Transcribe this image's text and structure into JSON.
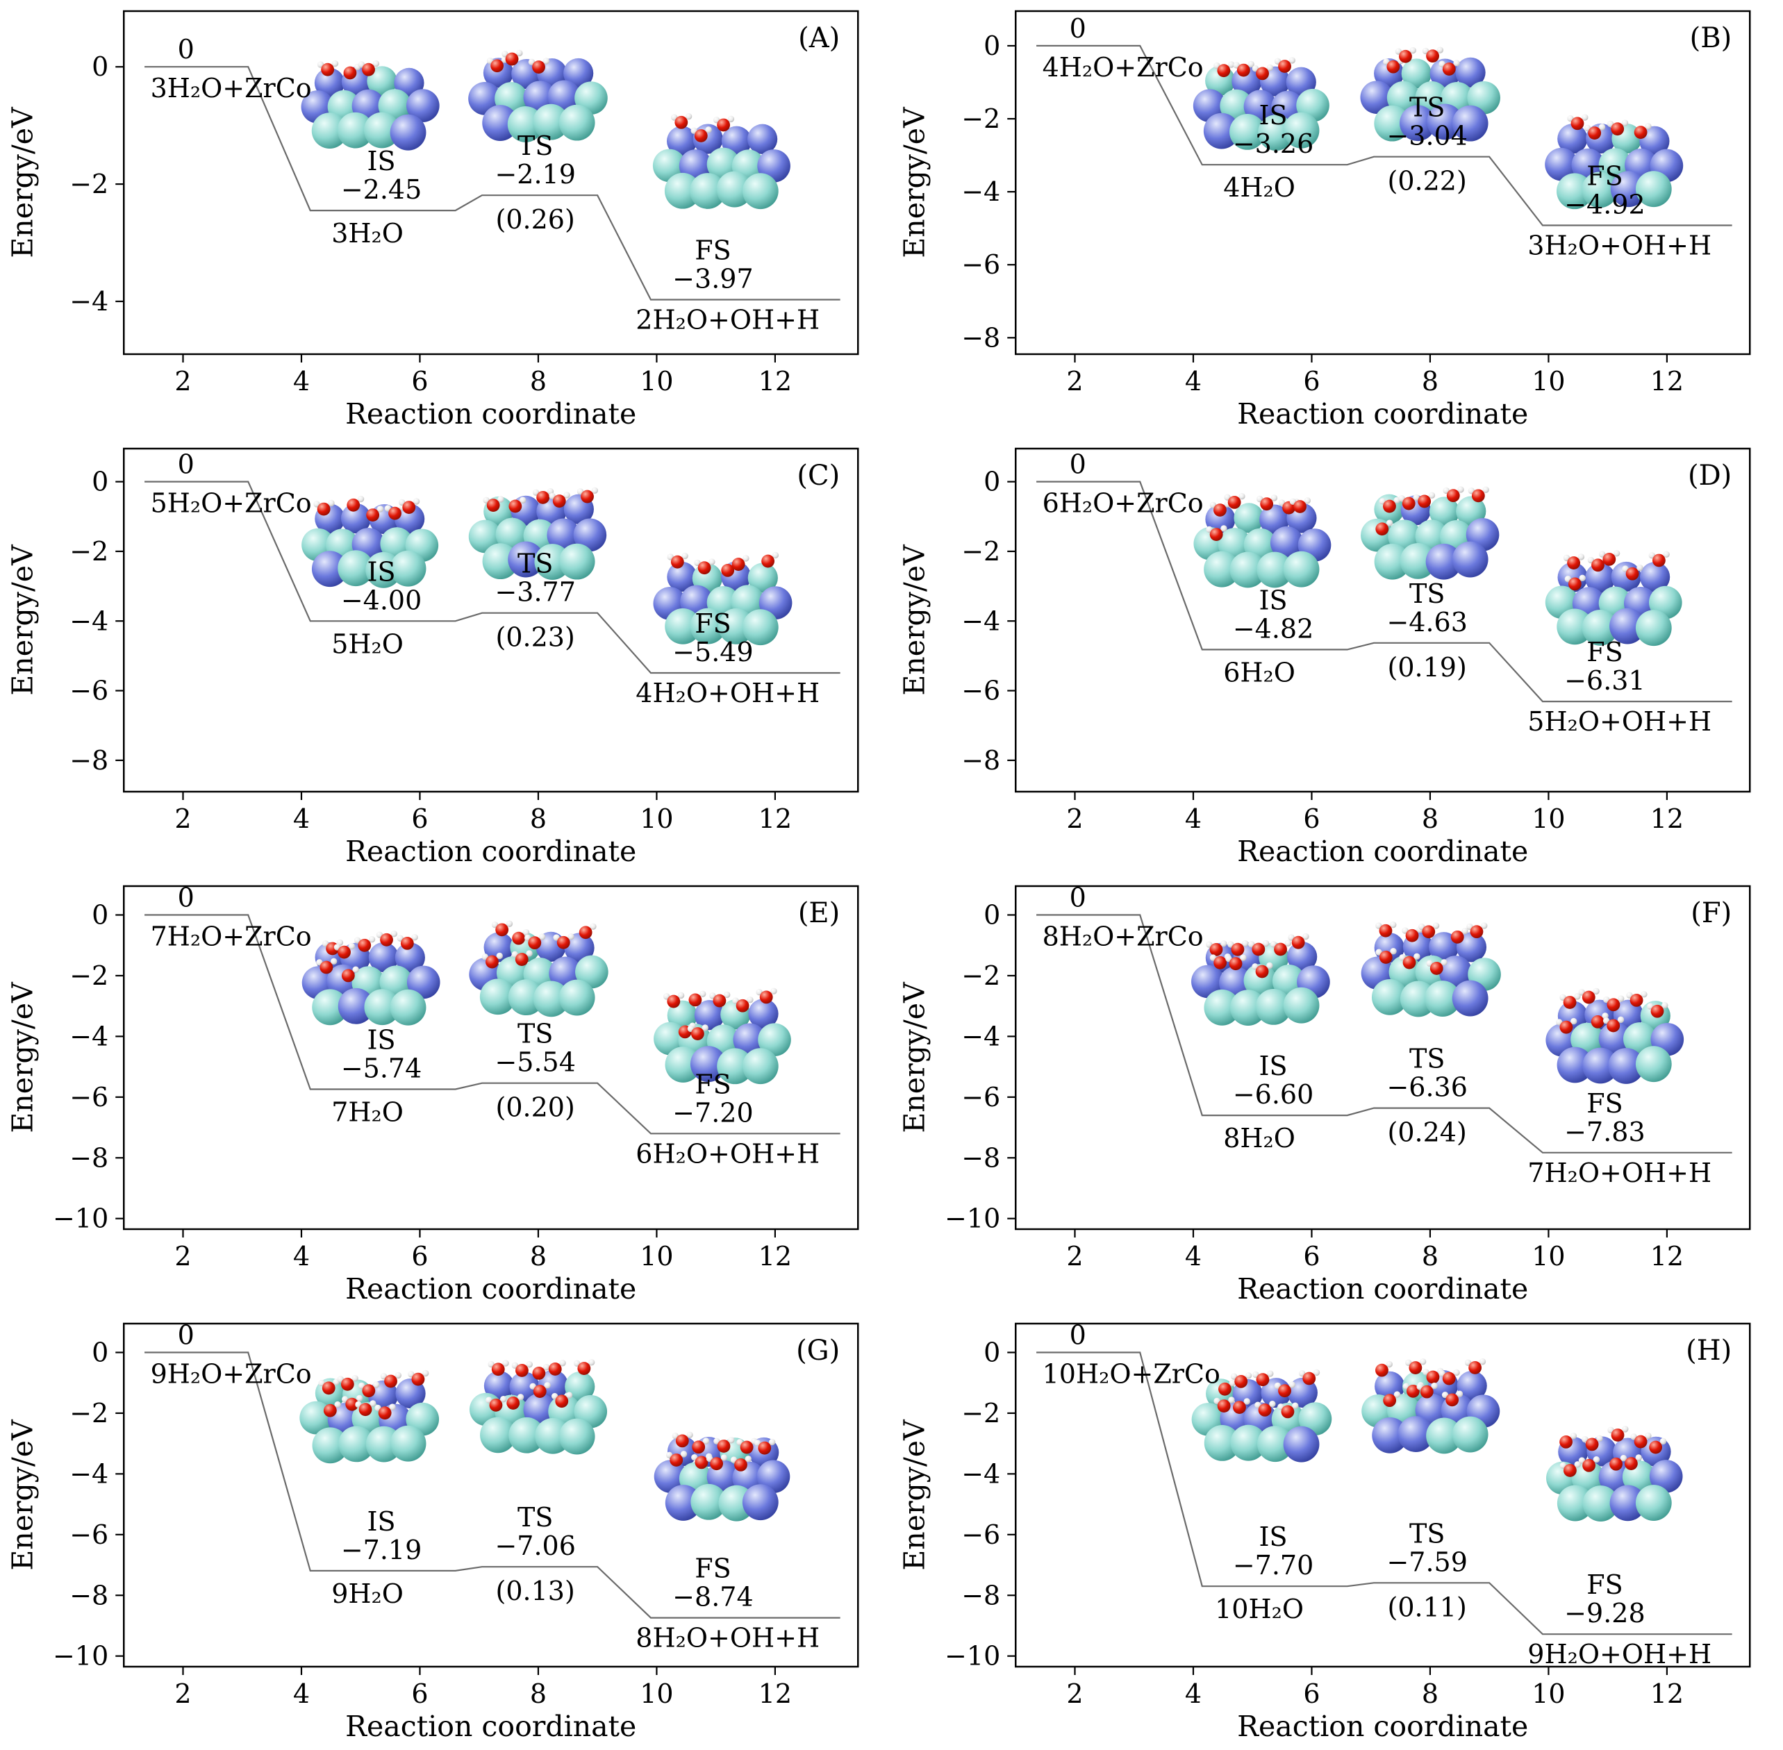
{
  "figure": {
    "xlabel": "Reaction coordinate",
    "ylabel": "Energy/eV",
    "x_ticks": [
      2,
      4,
      6,
      8,
      10,
      12
    ],
    "profile_x": [
      1.35,
      3.1,
      4.15,
      6.6,
      7.05,
      9.0,
      9.9,
      13.1
    ],
    "line_color": "#6a6a6a",
    "atom_colors": {
      "surface_cyan": "#8fd8d0",
      "surface_blue": "#6b79dd",
      "oxygen": "#e01505",
      "hydrogen": "#f5f5f5"
    }
  },
  "chart_data": [
    {
      "type": "line",
      "panel": "(A)",
      "xlabel": "Reaction coordinate",
      "ylabel": "Energy/eV",
      "reactant": "3H₂O+ZrCo",
      "zero_label": "0",
      "is_label": "IS",
      "is_value": -2.45,
      "adsorbed": "3H₂O",
      "ts_label": "TS",
      "ts_value": -2.19,
      "barrier": "(0.26)",
      "fs_label": "FS",
      "fs_value": -3.97,
      "product": "2H₂O+OH+H",
      "n_water": 3,
      "y_ticks": [
        0,
        -2,
        -4
      ],
      "ylim": [
        -4.9,
        0.95
      ],
      "xlim": [
        1,
        13.4
      ]
    },
    {
      "type": "line",
      "panel": "(B)",
      "xlabel": "Reaction coordinate",
      "ylabel": "Energy/eV",
      "reactant": "4H₂O+ZrCo",
      "zero_label": "0",
      "is_label": "IS",
      "is_value": -3.26,
      "adsorbed": "4H₂O",
      "ts_label": "TS",
      "ts_value": -3.04,
      "barrier": "(0.22)",
      "fs_label": "FS",
      "fs_value": -4.92,
      "product": "3H₂O+OH+H",
      "n_water": 4,
      "y_ticks": [
        0,
        -2,
        -4,
        -6,
        -8
      ],
      "ylim": [
        -8.45,
        0.95
      ],
      "xlim": [
        1,
        13.4
      ]
    },
    {
      "type": "line",
      "panel": "(C)",
      "xlabel": "Reaction coordinate",
      "ylabel": "Energy/eV",
      "reactant": "5H₂O+ZrCo",
      "zero_label": "0",
      "is_label": "IS",
      "is_value": -4.0,
      "adsorbed": "5H₂O",
      "ts_label": "TS",
      "ts_value": -3.77,
      "barrier": "(0.23)",
      "fs_label": "FS",
      "fs_value": -5.49,
      "product": "4H₂O+OH+H",
      "n_water": 5,
      "y_ticks": [
        0,
        -2,
        -4,
        -6,
        -8
      ],
      "ylim": [
        -8.9,
        0.95
      ],
      "xlim": [
        1,
        13.4
      ]
    },
    {
      "type": "line",
      "panel": "(D)",
      "xlabel": "Reaction coordinate",
      "ylabel": "Energy/eV",
      "reactant": "6H₂O+ZrCo",
      "zero_label": "0",
      "is_label": "IS",
      "is_value": -4.82,
      "adsorbed": "6H₂O",
      "ts_label": "TS",
      "ts_value": -4.63,
      "barrier": "(0.19)",
      "fs_label": "FS",
      "fs_value": -6.31,
      "product": "5H₂O+OH+H",
      "n_water": 6,
      "y_ticks": [
        0,
        -2,
        -4,
        -6,
        -8
      ],
      "ylim": [
        -8.9,
        0.95
      ],
      "xlim": [
        1,
        13.4
      ]
    },
    {
      "type": "line",
      "panel": "(E)",
      "xlabel": "Reaction coordinate",
      "ylabel": "Energy/eV",
      "reactant": "7H₂O+ZrCo",
      "zero_label": "0",
      "is_label": "IS",
      "is_value": -5.74,
      "adsorbed": "7H₂O",
      "ts_label": "TS",
      "ts_value": -5.54,
      "barrier": "(0.20)",
      "fs_label": "FS",
      "fs_value": -7.2,
      "product": "6H₂O+OH+H",
      "n_water": 7,
      "y_ticks": [
        0,
        -2,
        -4,
        -6,
        -8,
        -10
      ],
      "ylim": [
        -10.35,
        0.95
      ],
      "xlim": [
        1,
        13.4
      ]
    },
    {
      "type": "line",
      "panel": "(F)",
      "xlabel": "Reaction coordinate",
      "ylabel": "Energy/eV",
      "reactant": "8H₂O+ZrCo",
      "zero_label": "0",
      "is_label": "IS",
      "is_value": -6.6,
      "adsorbed": "8H₂O",
      "ts_label": "TS",
      "ts_value": -6.36,
      "barrier": "(0.24)",
      "fs_label": "FS",
      "fs_value": -7.83,
      "product": "7H₂O+OH+H",
      "n_water": 8,
      "y_ticks": [
        0,
        -2,
        -4,
        -6,
        -8,
        -10
      ],
      "ylim": [
        -10.35,
        0.95
      ],
      "xlim": [
        1,
        13.4
      ]
    },
    {
      "type": "line",
      "panel": "(G)",
      "xlabel": "Reaction coordinate",
      "ylabel": "Energy/eV",
      "reactant": "9H₂O+ZrCo",
      "zero_label": "0",
      "is_label": "IS",
      "is_value": -7.19,
      "adsorbed": "9H₂O",
      "ts_label": "TS",
      "ts_value": -7.06,
      "barrier": "(0.13)",
      "fs_label": "FS",
      "fs_value": -8.74,
      "product": "8H₂O+OH+H",
      "n_water": 9,
      "y_ticks": [
        0,
        -2,
        -4,
        -6,
        -8,
        -10
      ],
      "ylim": [
        -10.35,
        0.95
      ],
      "xlim": [
        1,
        13.4
      ]
    },
    {
      "type": "line",
      "panel": "(H)",
      "xlabel": "Reaction coordinate",
      "ylabel": "Energy/eV",
      "reactant": "10H₂O+ZrCo",
      "zero_label": "0",
      "is_label": "IS",
      "is_value": -7.7,
      "adsorbed": "10H₂O",
      "ts_label": "TS",
      "ts_value": -7.59,
      "barrier": "(0.11)",
      "fs_label": "FS",
      "fs_value": -9.28,
      "product": "9H₂O+OH+H",
      "n_water": 10,
      "y_ticks": [
        0,
        -2,
        -4,
        -6,
        -8,
        -10
      ],
      "ylim": [
        -10.35,
        0.95
      ],
      "xlim": [
        1,
        13.4
      ]
    }
  ]
}
